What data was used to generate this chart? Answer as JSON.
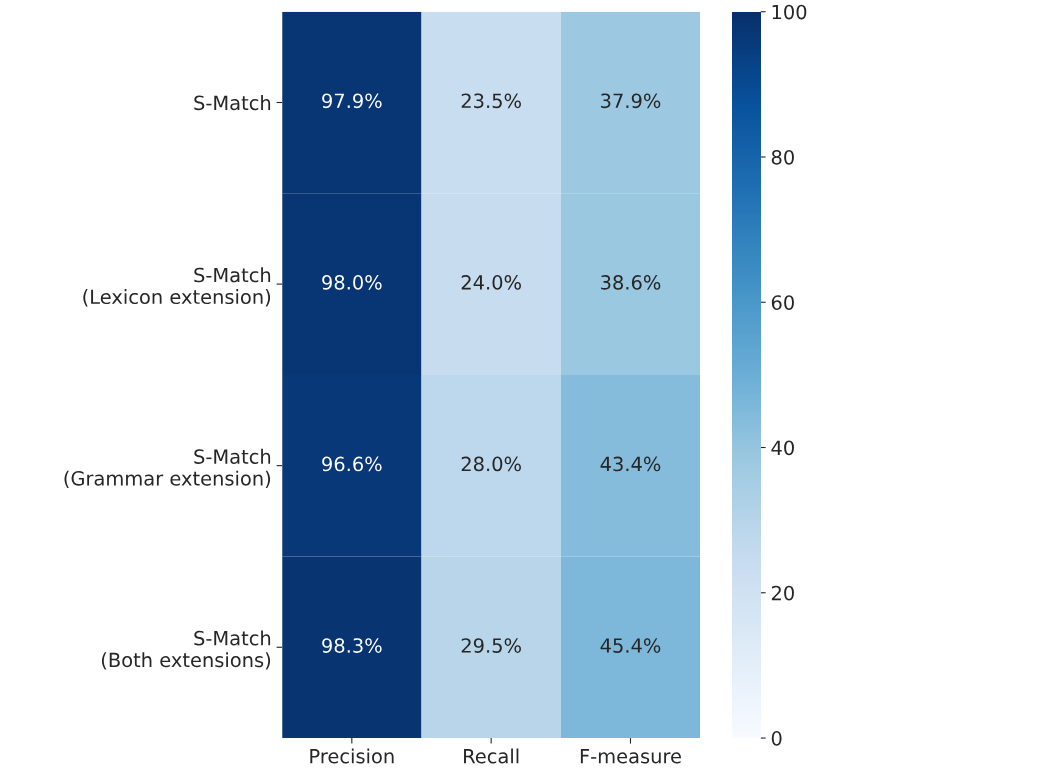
{
  "chart_data": {
    "type": "heatmap",
    "categories": [
      "Precision",
      "Recall",
      "F-measure"
    ],
    "y_categories": [
      "S-Match",
      "S-Match\n(Lexicon extension)",
      "S-Match\n(Grammar extension)",
      "S-Match\n(Both extensions)"
    ],
    "cells": [
      [
        97.9,
        23.5,
        37.9
      ],
      [
        98.0,
        24.0,
        38.6
      ],
      [
        96.6,
        28.0,
        43.4
      ],
      [
        98.3,
        29.5,
        45.4
      ]
    ],
    "cell_labels": [
      [
        "97.9%",
        "23.5%",
        "37.9%"
      ],
      [
        "98.0%",
        "24.0%",
        "38.6%"
      ],
      [
        "96.6%",
        "28.0%",
        "43.4%"
      ],
      [
        "98.3%",
        "29.5%",
        "45.4%"
      ]
    ],
    "clim": [
      0,
      100
    ],
    "cticks": [
      0,
      20,
      40,
      60,
      80,
      100
    ]
  }
}
